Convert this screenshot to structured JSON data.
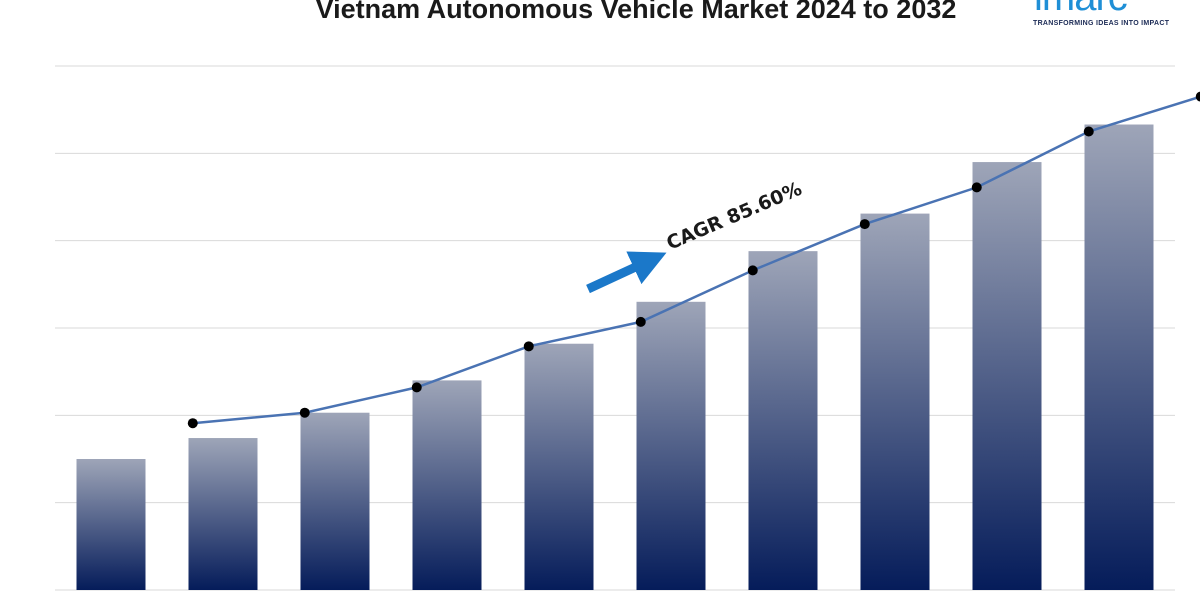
{
  "logo": {
    "text": "imarc",
    "tagline": "TRANSFORMING IDEAS INTO IMPACT"
  },
  "chart_data": {
    "type": "bar",
    "title": "Vietnam Autonomous Vehicle Market 2024 to 2032",
    "categories": [
      "",
      "",
      "",
      "",
      "",
      "",
      "",
      "",
      "",
      ""
    ],
    "series": [
      {
        "type": "bar",
        "values": [
          1.5,
          1.74,
          2.03,
          2.4,
          2.82,
          3.3,
          3.88,
          4.31,
          4.9,
          5.33
        ]
      },
      {
        "type": "line",
        "values": [
          1.91,
          2.03,
          2.32,
          2.79,
          3.07,
          3.66,
          4.19,
          4.61,
          5.25,
          5.65
        ]
      }
    ],
    "ylim": [
      0,
      6
    ],
    "yaxis_labels_shown": false,
    "grid": true,
    "annotation": {
      "text": "CAGR 85.60%"
    },
    "colors": {
      "bar_top": "#9ea5b8",
      "bar_bottom": "#051c5a",
      "line": "#4a73b3",
      "marker": "#000000",
      "arrow": "#1b78c9",
      "grid": "#d9d9d9"
    }
  }
}
